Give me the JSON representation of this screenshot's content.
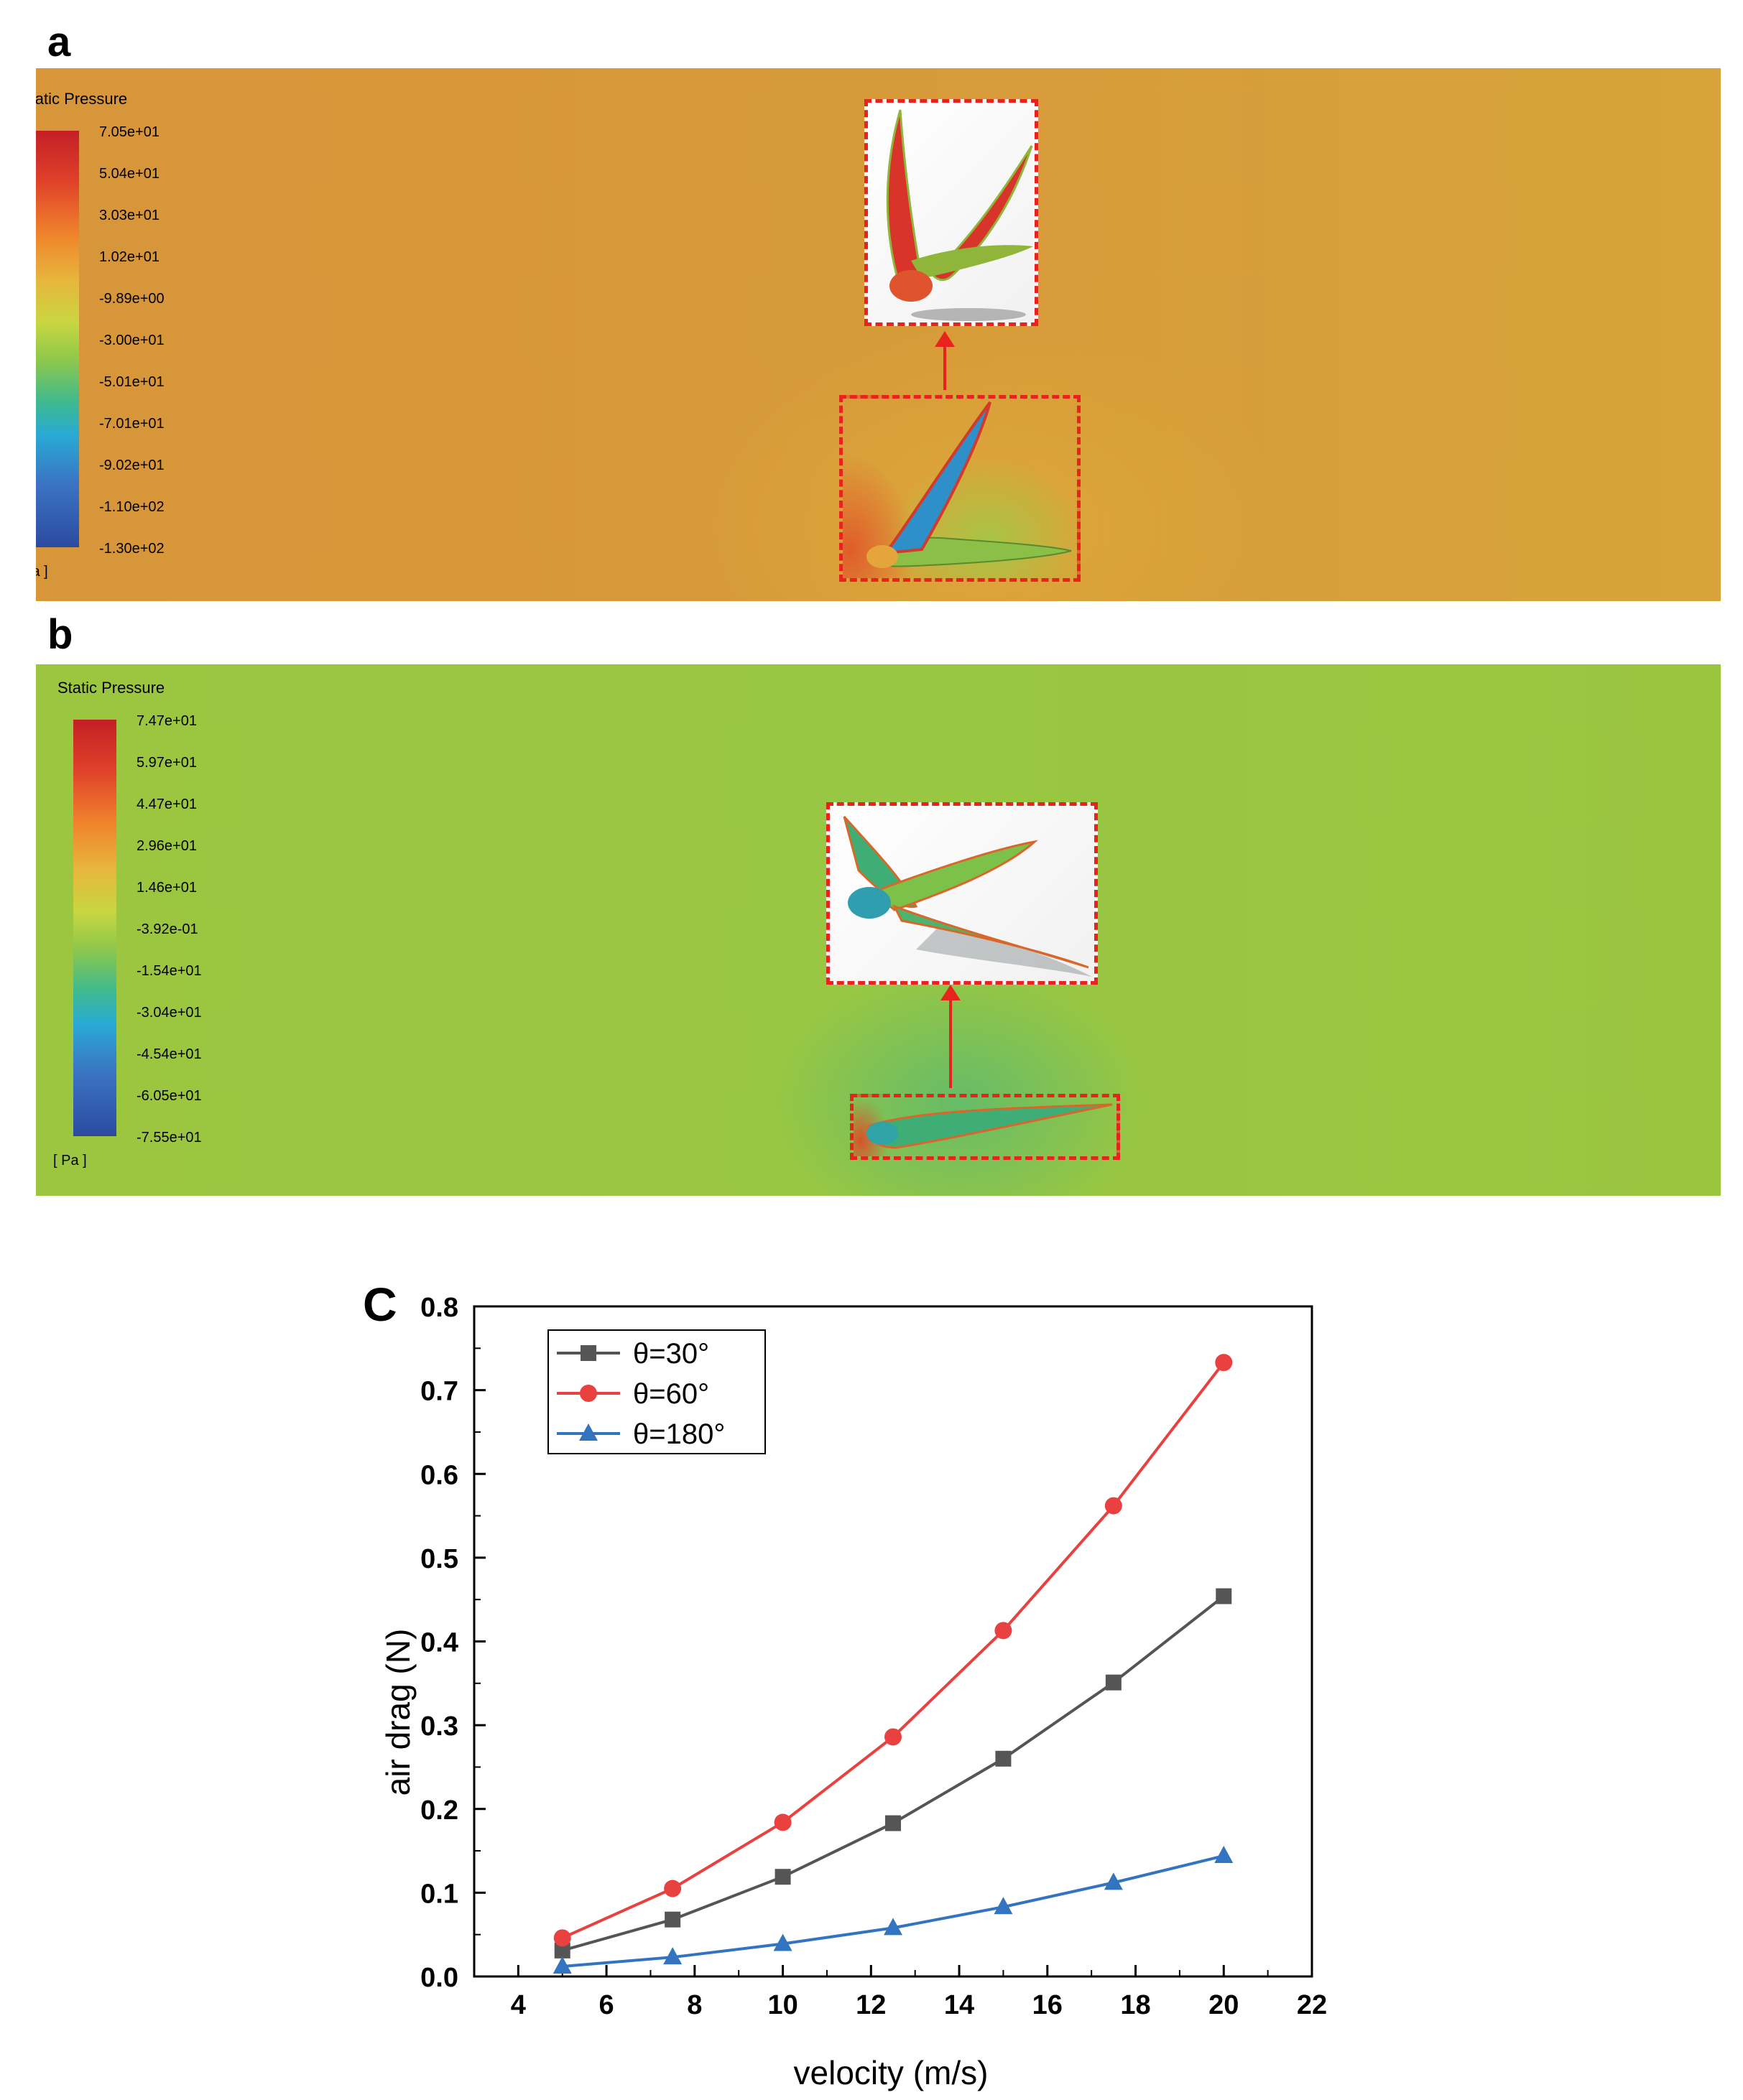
{
  "panel_a": {
    "letter": "a",
    "legend": {
      "title": "Static Pressure",
      "unit": "[ Pa ]",
      "ticks": [
        "7.05e+01",
        "5.04e+01",
        "3.03e+01",
        "1.02e+01",
        "-9.89e+00",
        "-3.00e+01",
        "-5.01e+01",
        "-7.01e+01",
        "-9.02e+01",
        "-1.10e+02",
        "-1.30e+02"
      ]
    }
  },
  "panel_b": {
    "letter": "b",
    "legend": {
      "title": "Static Pressure",
      "unit": "[ Pa ]",
      "ticks": [
        "7.47e+01",
        "5.97e+01",
        "4.47e+01",
        "2.96e+01",
        "1.46e+01",
        "-3.92e-01",
        "-1.54e+01",
        "-3.04e+01",
        "-4.54e+01",
        "-6.05e+01",
        "-7.55e+01"
      ]
    }
  },
  "colors": {
    "theta30": "#555555",
    "theta60": "#e8413f",
    "theta180": "#3374c0",
    "dashed_box": "#e8221c"
  },
  "chart_data": {
    "letter": "C",
    "type": "line",
    "xlabel": "velocity (m/s)",
    "ylabel": "air drag (N)",
    "xlim": [
      3,
      22
    ],
    "ylim": [
      0,
      0.8
    ],
    "xticks": [
      4,
      6,
      8,
      10,
      12,
      14,
      16,
      18,
      20,
      22
    ],
    "yticks": [
      0.0,
      0.1,
      0.2,
      0.3,
      0.4,
      0.5,
      0.6,
      0.7,
      0.8
    ],
    "ytick_labels": [
      "0.0",
      "0.1",
      "0.2",
      "0.3",
      "0.4",
      "0.5",
      "0.6",
      "0.7",
      "0.8"
    ],
    "grid": false,
    "legend_position": "top-left",
    "x": [
      5,
      7.5,
      10,
      12.5,
      15,
      17.5,
      20
    ],
    "series": [
      {
        "name": "θ=30°",
        "marker": "square",
        "color": "#555555",
        "values": [
          0.031,
          0.068,
          0.119,
          0.183,
          0.26,
          0.351,
          0.454
        ]
      },
      {
        "name": "θ=60°",
        "marker": "circle",
        "color": "#e8413f",
        "values": [
          0.046,
          0.105,
          0.184,
          0.286,
          0.413,
          0.562,
          0.733
        ]
      },
      {
        "name": "θ=180°",
        "marker": "triangle",
        "color": "#3374c0",
        "values": [
          0.012,
          0.023,
          0.039,
          0.058,
          0.083,
          0.112,
          0.144
        ]
      }
    ]
  }
}
